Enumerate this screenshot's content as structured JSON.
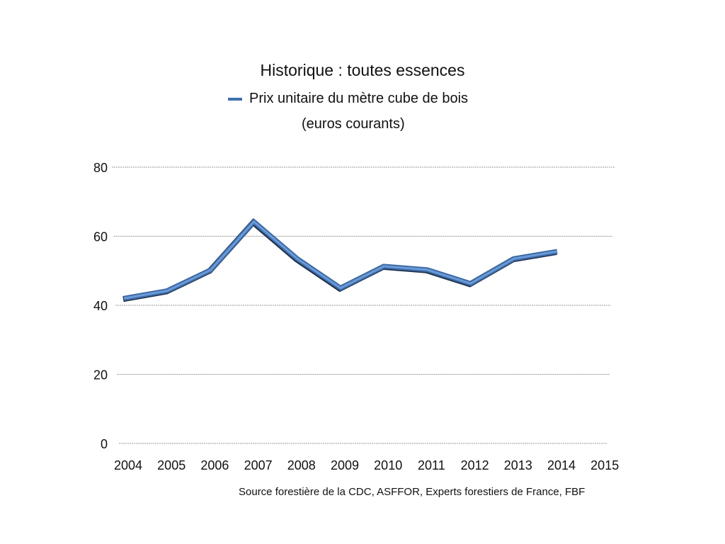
{
  "chart_data": {
    "type": "line",
    "title": "Historique : toutes essences",
    "subtitle": "(euros courants)",
    "legend": {
      "position": "top",
      "entries": [
        "Prix unitaire du mètre cube de bois"
      ]
    },
    "categories": [
      "2004",
      "2005",
      "2006",
      "2007",
      "2008",
      "2009",
      "2010",
      "2011",
      "2012",
      "2013",
      "2014",
      "2015"
    ],
    "series": [
      {
        "name": "Prix unitaire du mètre cube de bois",
        "color": "#4a7fc1",
        "values": [
          42,
          44.2,
          50.2,
          64.2,
          53.5,
          45,
          51.3,
          50.3,
          46.3,
          53.5,
          55.6,
          null
        ]
      }
    ],
    "yticks": [
      "0",
      "20",
      "40",
      "60",
      "80"
    ],
    "ylim": [
      0,
      80
    ],
    "grid": true,
    "xlabel": "",
    "ylabel": "",
    "source": "Source forestière de la CDC, ASFFOR, Experts forestiers de France, FBF"
  }
}
